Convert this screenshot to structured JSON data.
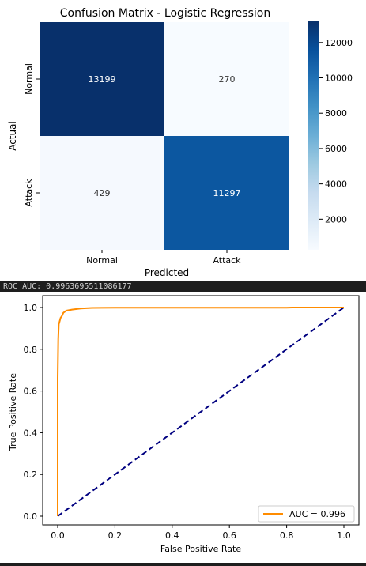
{
  "console_output": "ROC AUC: 0.9963695511086177",
  "chart_data": [
    {
      "type": "heatmap",
      "title": "Confusion Matrix - Logistic Regression",
      "xlabel": "Predicted",
      "ylabel": "Actual",
      "x_categories": [
        "Normal",
        "Attack"
      ],
      "y_categories": [
        "Normal",
        "Attack"
      ],
      "values": [
        [
          13199,
          270
        ],
        [
          429,
          11297
        ]
      ],
      "colorbar": {
        "min": 270,
        "max": 13199,
        "ticks": [
          2000,
          4000,
          6000,
          8000,
          10000,
          12000
        ],
        "colormap": "Blues"
      }
    },
    {
      "type": "line",
      "title": "",
      "xlabel": "False Positive Rate",
      "ylabel": "True Positive Rate",
      "xlim": [
        0,
        1
      ],
      "ylim": [
        0,
        1
      ],
      "xticks": [
        "0.0",
        "0.2",
        "0.4",
        "0.6",
        "0.8",
        "1.0"
      ],
      "yticks": [
        "0.0",
        "0.2",
        "0.4",
        "0.6",
        "0.8",
        "1.0"
      ],
      "legend_position": "lower right",
      "series": [
        {
          "name": "AUC = 0.996",
          "color": "#ff8c00",
          "style": "solid",
          "x": [
            0,
            0,
            0.002,
            0.004,
            0.006,
            0.01,
            0.015,
            0.02,
            0.03,
            0.05,
            0.08,
            0.12,
            0.2,
            0.4,
            0.6,
            0.8,
            0.82,
            1.0
          ],
          "y": [
            0,
            0.66,
            0.85,
            0.92,
            0.93,
            0.95,
            0.96,
            0.975,
            0.985,
            0.99,
            0.995,
            0.998,
            0.999,
            0.999,
            0.999,
            0.999,
            1.0,
            1.0
          ]
        },
        {
          "color": "#000080",
          "style": "dashed",
          "x": [
            0,
            1
          ],
          "y": [
            0,
            1
          ]
        }
      ]
    }
  ]
}
